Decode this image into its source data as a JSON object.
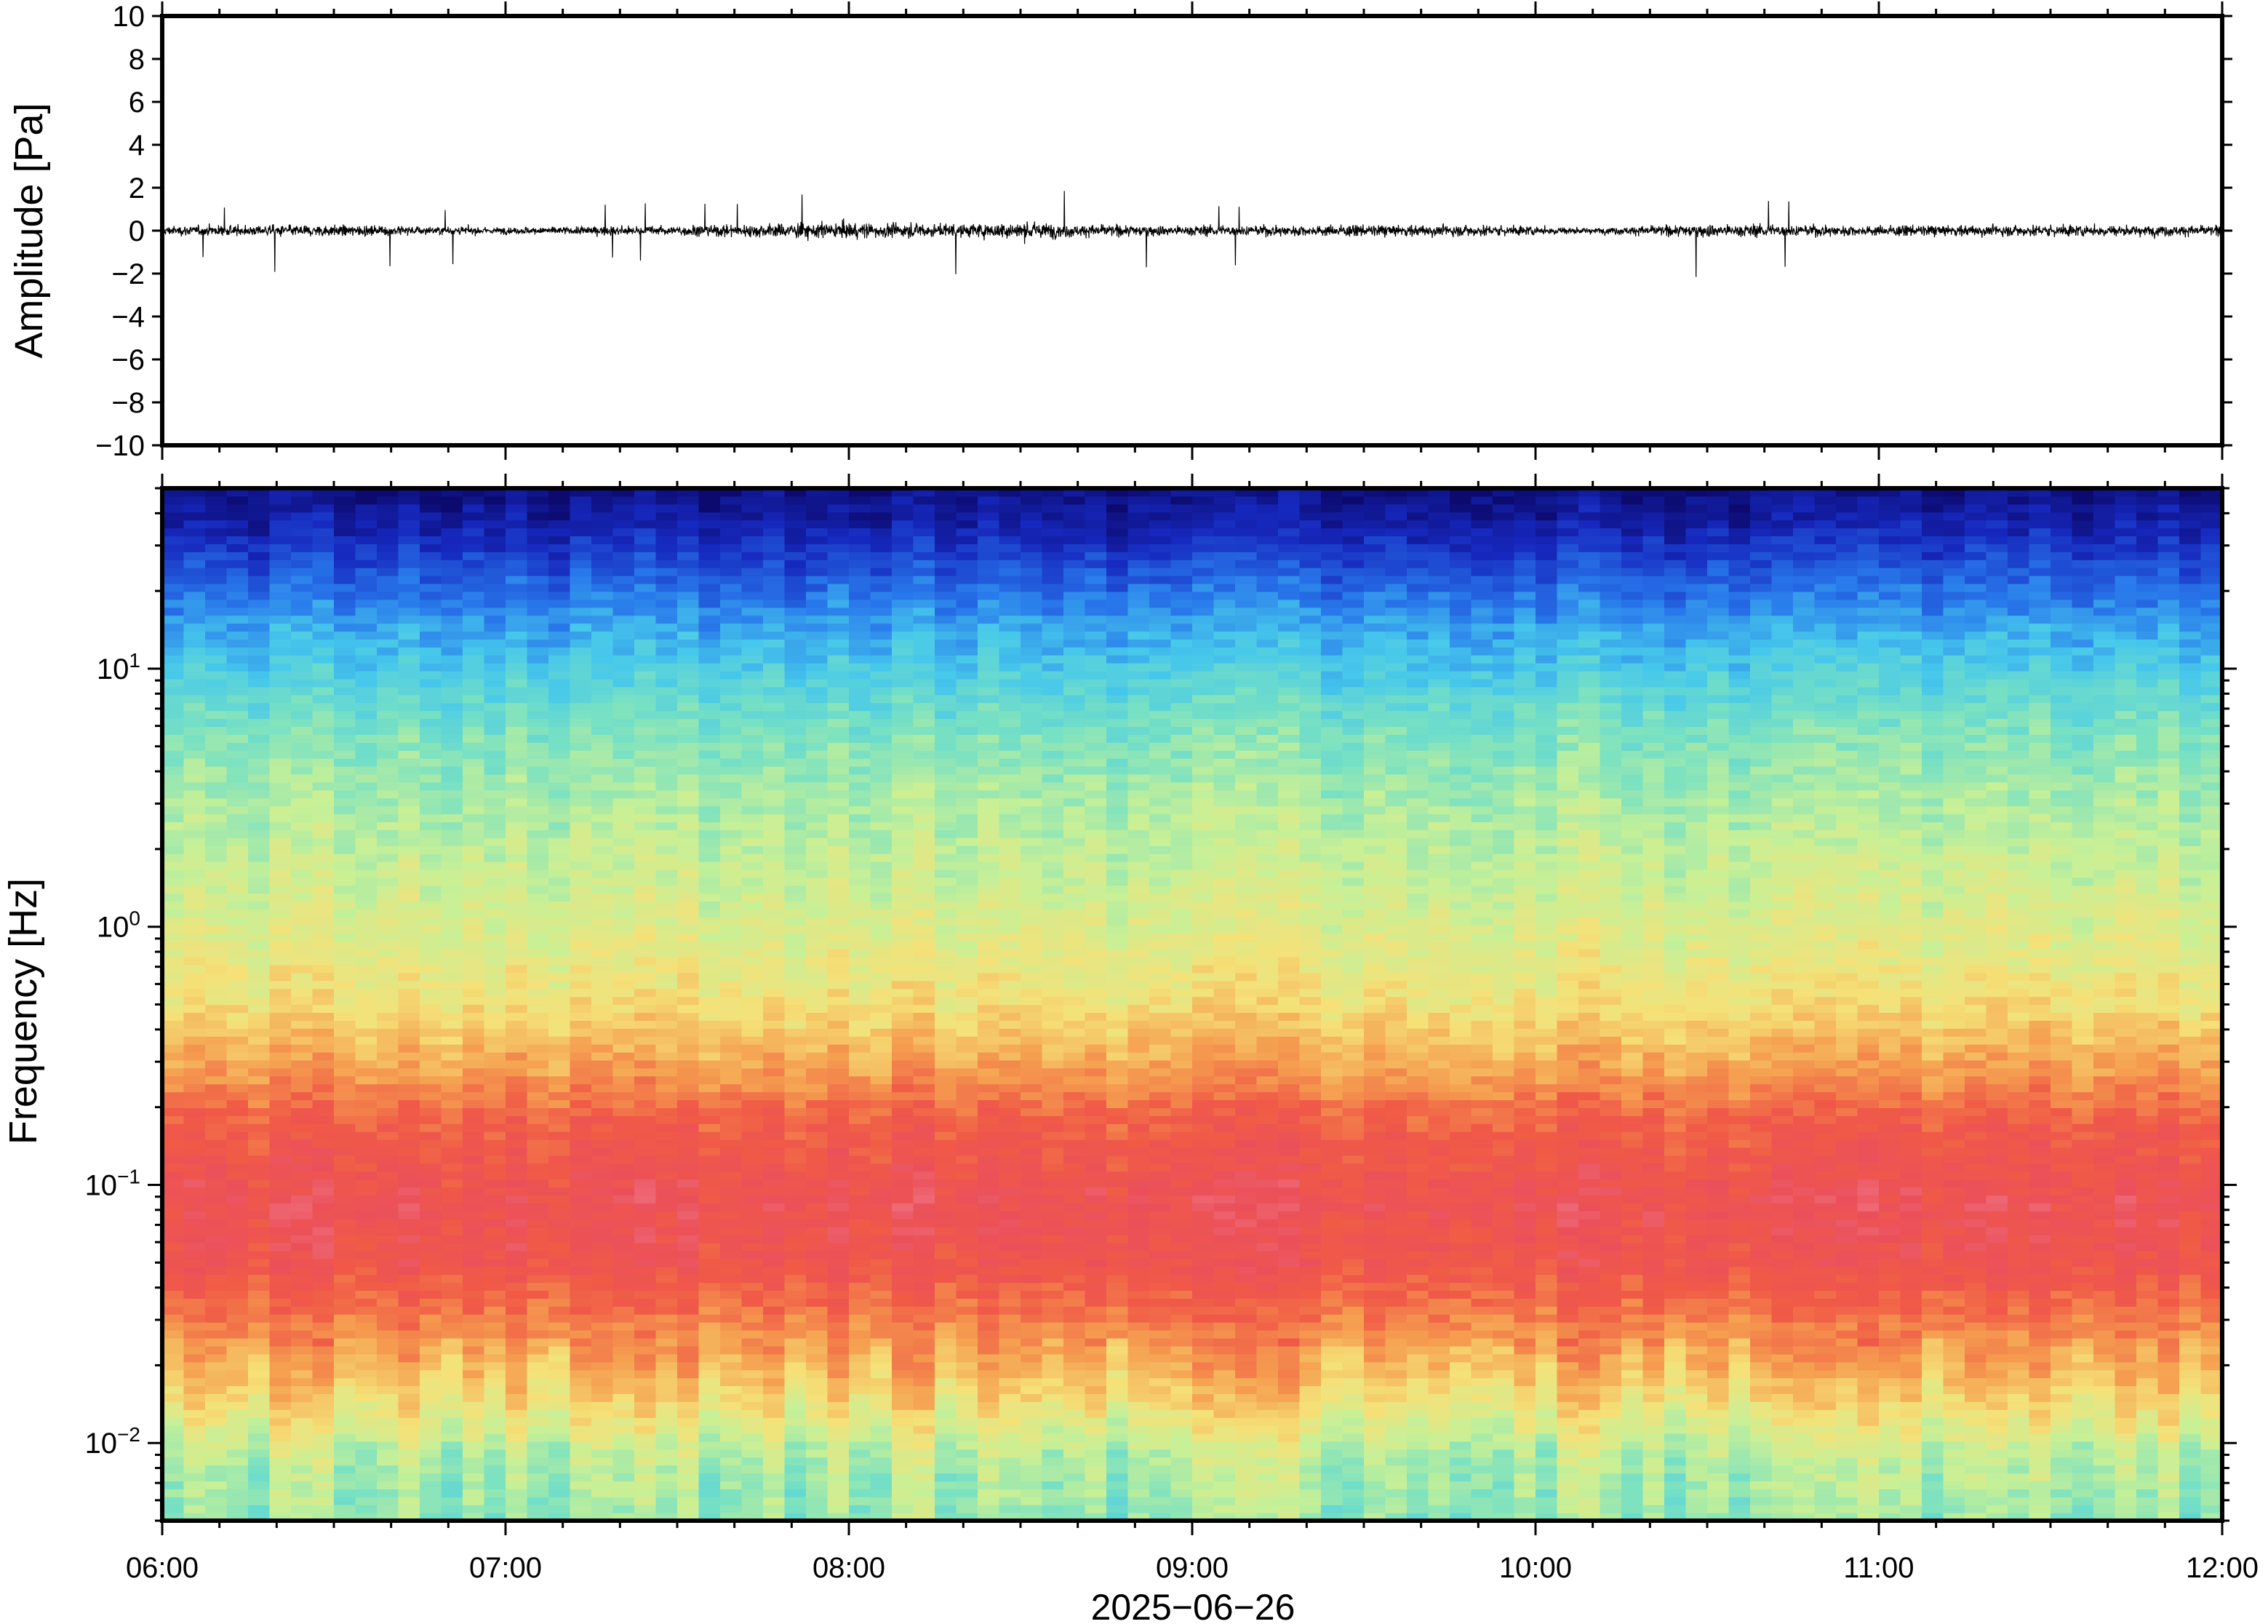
{
  "chart_data": [
    {
      "type": "line",
      "ylabel": "Amplitude [Pa]",
      "ylim": [
        -10,
        10
      ],
      "yticks": [
        10,
        8,
        6,
        4,
        2,
        0,
        -2,
        -4,
        -6,
        -8,
        -10
      ],
      "ytick_labels": [
        "10",
        "8",
        "6",
        "4",
        "2",
        "0",
        "−2",
        "−4",
        "−6",
        "−8",
        "−10"
      ],
      "x_range": [
        "06:00",
        "12:00"
      ],
      "series": [
        {
          "values_envelope": [
            {
              "time": "06:00",
              "min": -1.5,
              "max": 1.5
            },
            {
              "time": "06:30",
              "min": -2.4,
              "max": 1.2
            },
            {
              "time": "07:00",
              "min": -1.2,
              "max": 1.0
            },
            {
              "time": "07:30",
              "min": -1.6,
              "max": 1.8
            },
            {
              "time": "07:57",
              "min": -3.6,
              "max": 1.7
            },
            {
              "time": "08:20",
              "min": -2.0,
              "max": 2.2
            },
            {
              "time": "08:30",
              "min": -3.0,
              "max": 2.9
            },
            {
              "time": "08:40",
              "min": -1.8,
              "max": 2.1
            },
            {
              "time": "09:00",
              "min": -1.9,
              "max": 1.5
            },
            {
              "time": "09:30",
              "min": -2.3,
              "max": 1.4
            },
            {
              "time": "09:50",
              "min": -1.8,
              "max": 2.2
            },
            {
              "time": "10:10",
              "min": -1.0,
              "max": 1.0
            },
            {
              "time": "10:30",
              "min": -2.5,
              "max": 1.8
            },
            {
              "time": "11:00",
              "min": -1.6,
              "max": 1.8
            },
            {
              "time": "11:30",
              "min": -2.2,
              "max": 1.8
            },
            {
              "time": "12:00",
              "min": -1.8,
              "max": 1.4
            }
          ]
        }
      ]
    },
    {
      "type": "heatmap",
      "ylabel": "Frequency [Hz]",
      "xlabel": "2025−06−26",
      "y_scale": "log",
      "ylim_hz": [
        0.005,
        50
      ],
      "yticks": [
        {
          "value": 10,
          "base": "10",
          "exp": "1"
        },
        {
          "value": 1,
          "base": "10",
          "exp": "0"
        },
        {
          "value": 0.1,
          "base": "10",
          "exp": "−1"
        },
        {
          "value": 0.01,
          "base": "10",
          "exp": "−2"
        }
      ],
      "xticks": [
        "06:00",
        "07:00",
        "08:00",
        "09:00",
        "10:00",
        "11:00",
        "12:00"
      ],
      "colormap": "rainbow (blue = low power, red/pink = high power)",
      "power_profile_note": "highest power 0.03–0.3 Hz (red/pink), decreasing to green-yellow around 1–5 Hz, cyan/blue above 10 Hz, dark blue near 40 Hz; lowest frequencies (<0.015 Hz) green/cyan",
      "colors": {
        "low": "#0a0a78",
        "mid_low": "#2e8ef0",
        "mid": "#7fe0c8",
        "mid_high": "#f2e88a",
        "high": "#f0504a",
        "peak": "#f59aa0"
      }
    }
  ]
}
